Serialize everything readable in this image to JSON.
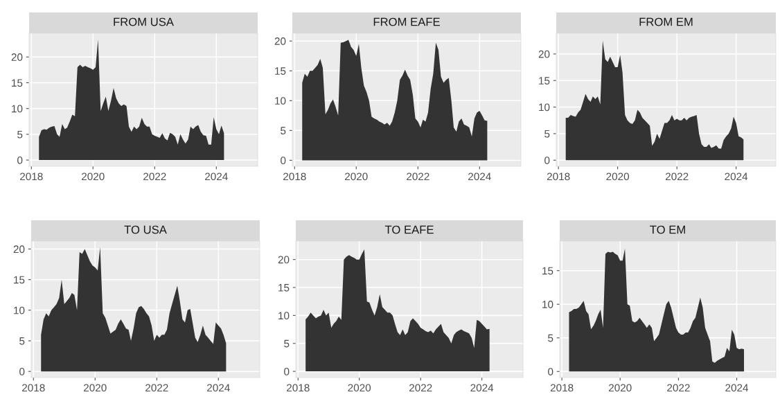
{
  "chart_data": [
    {
      "type": "area",
      "title": "FROM USA",
      "color": "#333333",
      "grid": true,
      "xlim": [
        "2017-12-05",
        "2025-05-05"
      ],
      "xticks": [
        {
          "value": "2018-01",
          "label": "2018"
        },
        {
          "value": "2020-01",
          "label": "2020"
        },
        {
          "value": "2022-01",
          "label": "2022"
        },
        {
          "value": "2024-01",
          "label": "2024"
        }
      ],
      "ylim": [
        -1.2,
        24.6
      ],
      "yticks": [
        0,
        5,
        10,
        15,
        20
      ],
      "x": [
        "2018-04",
        "2018-05",
        "2018-06",
        "2018-07",
        "2018-08",
        "2018-09",
        "2018-10",
        "2018-11",
        "2018-12",
        "2019-01",
        "2019-02",
        "2019-03",
        "2019-04",
        "2019-05",
        "2019-06",
        "2019-07",
        "2019-08",
        "2019-09",
        "2019-10",
        "2019-11",
        "2019-12",
        "2020-01",
        "2020-02",
        "2020-03",
        "2020-04",
        "2020-05",
        "2020-06",
        "2020-07",
        "2020-08",
        "2020-09",
        "2020-10",
        "2020-11",
        "2020-12",
        "2021-01",
        "2021-02",
        "2021-03",
        "2021-04",
        "2021-05",
        "2021-06",
        "2021-07",
        "2021-08",
        "2021-09",
        "2021-10",
        "2021-11",
        "2021-12",
        "2022-01",
        "2022-02",
        "2022-03",
        "2022-04",
        "2022-05",
        "2022-06",
        "2022-07",
        "2022-08",
        "2022-09",
        "2022-10",
        "2022-11",
        "2022-12",
        "2023-01",
        "2023-02",
        "2023-03",
        "2023-04",
        "2023-05",
        "2023-06",
        "2023-07",
        "2023-08",
        "2023-09",
        "2023-10",
        "2023-11",
        "2023-12",
        "2024-01",
        "2024-02",
        "2024-03",
        "2024-04"
      ],
      "values": [
        4.5,
        5.8,
        6.0,
        5.9,
        6.3,
        6.5,
        6.6,
        5.0,
        4.5,
        7.0,
        6.0,
        6.3,
        7.5,
        8.8,
        8.5,
        18.0,
        18.5,
        18.0,
        18.3,
        18.0,
        17.8,
        17.5,
        18.0,
        23.4,
        9.5,
        11.0,
        12.3,
        9.5,
        11.5,
        14.0,
        12.0,
        11.0,
        10.5,
        10.8,
        10.5,
        6.5,
        5.5,
        6.5,
        6.0,
        6.5,
        8.2,
        7.0,
        6.5,
        6.5,
        5.0,
        4.7,
        4.5,
        4.3,
        5.2,
        4.2,
        3.8,
        5.3,
        5.0,
        4.5,
        3.0,
        5.0,
        4.0,
        3.2,
        4.0,
        6.5,
        6.0,
        6.5,
        6.8,
        5.5,
        4.8,
        4.7,
        3.0,
        3.0,
        8.3,
        6.0,
        5.0,
        6.7,
        5.2
      ]
    },
    {
      "type": "area",
      "title": "FROM EAFE",
      "color": "#333333",
      "grid": true,
      "xlim": [
        "2017-12-05",
        "2025-05-05"
      ],
      "xticks": [
        {
          "value": "2018-01",
          "label": "2018"
        },
        {
          "value": "2020-01",
          "label": "2020"
        },
        {
          "value": "2022-01",
          "label": "2022"
        },
        {
          "value": "2024-01",
          "label": "2024"
        }
      ],
      "ylim": [
        -1.0,
        21.3
      ],
      "yticks": [
        0,
        5,
        10,
        15,
        20
      ],
      "x": [
        "2018-04",
        "2018-05",
        "2018-06",
        "2018-07",
        "2018-08",
        "2018-09",
        "2018-10",
        "2018-11",
        "2018-12",
        "2019-01",
        "2019-02",
        "2019-03",
        "2019-04",
        "2019-05",
        "2019-06",
        "2019-07",
        "2019-08",
        "2019-09",
        "2019-10",
        "2019-11",
        "2019-12",
        "2020-01",
        "2020-02",
        "2020-03",
        "2020-04",
        "2020-05",
        "2020-06",
        "2020-07",
        "2020-08",
        "2020-09",
        "2020-10",
        "2020-11",
        "2020-12",
        "2021-01",
        "2021-02",
        "2021-03",
        "2021-04",
        "2021-05",
        "2021-06",
        "2021-07",
        "2021-08",
        "2021-09",
        "2021-10",
        "2021-11",
        "2021-12",
        "2022-01",
        "2022-02",
        "2022-03",
        "2022-04",
        "2022-05",
        "2022-06",
        "2022-07",
        "2022-08",
        "2022-09",
        "2022-10",
        "2022-11",
        "2022-12",
        "2023-01",
        "2023-02",
        "2023-03",
        "2023-04",
        "2023-05",
        "2023-06",
        "2023-07",
        "2023-08",
        "2023-09",
        "2023-10",
        "2023-11",
        "2023-12",
        "2024-01",
        "2024-02",
        "2024-03",
        "2024-04"
      ],
      "values": [
        13.0,
        14.5,
        14.0,
        15.0,
        15.0,
        15.5,
        16.0,
        17.0,
        15.5,
        7.7,
        8.5,
        9.5,
        10.2,
        9.0,
        7.5,
        19.7,
        19.8,
        20.0,
        20.2,
        19.0,
        18.5,
        17.5,
        19.5,
        15.5,
        12.5,
        11.5,
        10.0,
        7.3,
        7.0,
        6.8,
        6.5,
        6.3,
        6.0,
        6.3,
        5.8,
        6.5,
        8.0,
        10.0,
        13.5,
        14.2,
        15.2,
        14.2,
        13.5,
        11.0,
        7.0,
        6.5,
        5.5,
        6.8,
        6.5,
        8.0,
        12.0,
        14.5,
        19.7,
        18.5,
        14.0,
        13.0,
        13.5,
        13.8,
        10.0,
        5.5,
        4.8,
        6.5,
        7.0,
        6.0,
        5.8,
        5.5,
        4.0,
        7.0,
        8.0,
        8.3,
        7.5,
        6.7,
        6.6
      ]
    },
    {
      "type": "area",
      "title": "FROM EM",
      "color": "#333333",
      "grid": true,
      "xlim": [
        "2017-12-05",
        "2025-05-05"
      ],
      "xticks": [
        {
          "value": "2018-01",
          "label": "2018"
        },
        {
          "value": "2020-01",
          "label": "2020"
        },
        {
          "value": "2022-01",
          "label": "2022"
        },
        {
          "value": "2024-01",
          "label": "2024"
        }
      ],
      "ylim": [
        -1.14,
        23.9
      ],
      "yticks": [
        0,
        5,
        10,
        15,
        20
      ],
      "x": [
        "2018-04",
        "2018-05",
        "2018-06",
        "2018-07",
        "2018-08",
        "2018-09",
        "2018-10",
        "2018-11",
        "2018-12",
        "2019-01",
        "2019-02",
        "2019-03",
        "2019-04",
        "2019-05",
        "2019-06",
        "2019-07",
        "2019-08",
        "2019-09",
        "2019-10",
        "2019-11",
        "2019-12",
        "2020-01",
        "2020-02",
        "2020-03",
        "2020-04",
        "2020-05",
        "2020-06",
        "2020-07",
        "2020-08",
        "2020-09",
        "2020-10",
        "2020-11",
        "2020-12",
        "2021-01",
        "2021-02",
        "2021-03",
        "2021-04",
        "2021-05",
        "2021-06",
        "2021-07",
        "2021-08",
        "2021-09",
        "2021-10",
        "2021-11",
        "2021-12",
        "2022-01",
        "2022-02",
        "2022-03",
        "2022-04",
        "2022-05",
        "2022-06",
        "2022-07",
        "2022-08",
        "2022-09",
        "2022-10",
        "2022-11",
        "2022-12",
        "2023-01",
        "2023-02",
        "2023-03",
        "2023-04",
        "2023-05",
        "2023-06",
        "2023-07",
        "2023-08",
        "2023-09",
        "2023-10",
        "2023-11",
        "2023-12",
        "2024-01",
        "2024-02",
        "2024-03",
        "2024-04"
      ],
      "values": [
        8.0,
        8.0,
        8.5,
        8.3,
        8.2,
        9.0,
        9.5,
        11.0,
        12.5,
        11.5,
        11.0,
        12.0,
        11.5,
        12.0,
        10.5,
        22.5,
        19.0,
        18.5,
        19.5,
        18.5,
        17.5,
        17.5,
        19.8,
        16.5,
        8.5,
        7.5,
        7.0,
        6.8,
        7.5,
        9.5,
        9.0,
        8.0,
        7.5,
        7.0,
        6.5,
        2.7,
        3.5,
        5.0,
        4.0,
        5.5,
        7.0,
        7.0,
        7.5,
        8.5,
        7.5,
        7.8,
        7.5,
        7.5,
        8.0,
        7.5,
        8.0,
        8.2,
        8.3,
        8.5,
        5.0,
        3.0,
        2.5,
        2.5,
        3.0,
        2.3,
        2.5,
        2.8,
        2.2,
        2.2,
        3.8,
        4.5,
        5.0,
        6.0,
        8.2,
        7.0,
        4.5,
        4.3,
        3.9
      ]
    },
    {
      "type": "area",
      "title": "TO USA",
      "color": "#333333",
      "grid": true,
      "xlim": [
        "2017-12-05",
        "2025-05-05"
      ],
      "xticks": [
        {
          "value": "2018-01",
          "label": "2018"
        },
        {
          "value": "2020-01",
          "label": "2020"
        },
        {
          "value": "2022-01",
          "label": "2022"
        },
        {
          "value": "2024-01",
          "label": "2024"
        }
      ],
      "ylim": [
        -1.0,
        21.3
      ],
      "yticks": [
        0,
        5,
        10,
        15,
        20
      ],
      "x": [
        "2018-04",
        "2018-05",
        "2018-06",
        "2018-07",
        "2018-08",
        "2018-09",
        "2018-10",
        "2018-11",
        "2018-12",
        "2019-01",
        "2019-02",
        "2019-03",
        "2019-04",
        "2019-05",
        "2019-06",
        "2019-07",
        "2019-08",
        "2019-09",
        "2019-10",
        "2019-11",
        "2019-12",
        "2020-01",
        "2020-02",
        "2020-03",
        "2020-04",
        "2020-05",
        "2020-06",
        "2020-07",
        "2020-08",
        "2020-09",
        "2020-10",
        "2020-11",
        "2020-12",
        "2021-01",
        "2021-02",
        "2021-03",
        "2021-04",
        "2021-05",
        "2021-06",
        "2021-07",
        "2021-08",
        "2021-09",
        "2021-10",
        "2021-11",
        "2021-12",
        "2022-01",
        "2022-02",
        "2022-03",
        "2022-04",
        "2022-05",
        "2022-06",
        "2022-07",
        "2022-08",
        "2022-09",
        "2022-10",
        "2022-11",
        "2022-12",
        "2023-01",
        "2023-02",
        "2023-03",
        "2023-04",
        "2023-05",
        "2023-06",
        "2023-07",
        "2023-08",
        "2023-09",
        "2023-10",
        "2023-11",
        "2023-12",
        "2024-01",
        "2024-02",
        "2024-03",
        "2024-04"
      ],
      "values": [
        6.0,
        8.5,
        9.5,
        9.0,
        10.0,
        10.5,
        11.0,
        12.0,
        15.0,
        11.0,
        11.5,
        12.0,
        12.8,
        12.5,
        10.0,
        19.5,
        19.2,
        20.0,
        19.0,
        18.0,
        17.3,
        17.0,
        16.5,
        20.3,
        9.5,
        8.8,
        7.5,
        6.2,
        6.5,
        6.8,
        7.8,
        8.5,
        7.8,
        7.0,
        6.8,
        5.0,
        7.0,
        9.5,
        10.5,
        10.7,
        10.2,
        9.5,
        9.0,
        7.5,
        5.0,
        6.0,
        5.5,
        6.0,
        6.0,
        6.8,
        9.5,
        11.0,
        12.5,
        14.0,
        11.5,
        8.5,
        8.0,
        10.0,
        10.2,
        8.0,
        5.5,
        4.8,
        6.0,
        7.5,
        6.0,
        5.5,
        5.0,
        4.5,
        8.0,
        7.5,
        7.0,
        6.0,
        4.6
      ]
    },
    {
      "type": "area",
      "title": "TO EAFE",
      "color": "#333333",
      "grid": true,
      "xlim": [
        "2017-12-05",
        "2025-05-05"
      ],
      "xticks": [
        {
          "value": "2018-01",
          "label": "2018"
        },
        {
          "value": "2020-01",
          "label": "2020"
        },
        {
          "value": "2022-01",
          "label": "2022"
        },
        {
          "value": "2024-01",
          "label": "2024"
        }
      ],
      "ylim": [
        -1.1,
        23.3
      ],
      "yticks": [
        0,
        5,
        10,
        15,
        20
      ],
      "x": [
        "2018-04",
        "2018-05",
        "2018-06",
        "2018-07",
        "2018-08",
        "2018-09",
        "2018-10",
        "2018-11",
        "2018-12",
        "2019-01",
        "2019-02",
        "2019-03",
        "2019-04",
        "2019-05",
        "2019-06",
        "2019-07",
        "2019-08",
        "2019-09",
        "2019-10",
        "2019-11",
        "2019-12",
        "2020-01",
        "2020-02",
        "2020-03",
        "2020-04",
        "2020-05",
        "2020-06",
        "2020-07",
        "2020-08",
        "2020-09",
        "2020-10",
        "2020-11",
        "2020-12",
        "2021-01",
        "2021-02",
        "2021-03",
        "2021-04",
        "2021-05",
        "2021-06",
        "2021-07",
        "2021-08",
        "2021-09",
        "2021-10",
        "2021-11",
        "2021-12",
        "2022-01",
        "2022-02",
        "2022-03",
        "2022-04",
        "2022-05",
        "2022-06",
        "2022-07",
        "2022-08",
        "2022-09",
        "2022-10",
        "2022-11",
        "2022-12",
        "2023-01",
        "2023-02",
        "2023-03",
        "2023-04",
        "2023-05",
        "2023-06",
        "2023-07",
        "2023-08",
        "2023-09",
        "2023-10",
        "2023-11",
        "2023-12",
        "2024-01",
        "2024-02",
        "2024-03",
        "2024-04"
      ],
      "values": [
        9.3,
        9.8,
        10.5,
        10.0,
        9.5,
        9.8,
        10.0,
        11.0,
        10.0,
        10.5,
        7.8,
        8.5,
        9.0,
        9.8,
        9.2,
        20.0,
        20.5,
        20.8,
        20.5,
        20.3,
        20.0,
        20.0,
        21.0,
        21.8,
        12.5,
        12.3,
        11.0,
        10.0,
        11.5,
        13.8,
        11.5,
        11.0,
        10.5,
        10.5,
        10.0,
        8.5,
        7.0,
        6.5,
        7.5,
        6.5,
        7.0,
        9.0,
        9.5,
        9.0,
        8.5,
        7.8,
        7.5,
        7.2,
        7.0,
        7.3,
        6.8,
        7.5,
        8.0,
        8.5,
        7.0,
        6.5,
        6.0,
        5.0,
        6.5,
        7.0,
        7.3,
        7.5,
        7.2,
        7.0,
        6.8,
        6.0,
        4.2,
        9.2,
        9.0,
        8.5,
        8.0,
        7.5,
        7.6
      ]
    },
    {
      "type": "area",
      "title": "TO EM",
      "color": "#333333",
      "grid": true,
      "xlim": [
        "2017-12-05",
        "2025-05-05"
      ],
      "xticks": [
        {
          "value": "2018-01",
          "label": "2018"
        },
        {
          "value": "2020-01",
          "label": "2020"
        },
        {
          "value": "2022-01",
          "label": "2022"
        },
        {
          "value": "2024-01",
          "label": "2024"
        }
      ],
      "ylim": [
        -0.9,
        19.4
      ],
      "yticks": [
        0,
        5,
        10,
        15
      ],
      "x": [
        "2018-04",
        "2018-05",
        "2018-06",
        "2018-07",
        "2018-08",
        "2018-09",
        "2018-10",
        "2018-11",
        "2018-12",
        "2019-01",
        "2019-02",
        "2019-03",
        "2019-04",
        "2019-05",
        "2019-06",
        "2019-07",
        "2019-08",
        "2019-09",
        "2019-10",
        "2019-11",
        "2019-12",
        "2020-01",
        "2020-02",
        "2020-03",
        "2020-04",
        "2020-05",
        "2020-06",
        "2020-07",
        "2020-08",
        "2020-09",
        "2020-10",
        "2020-11",
        "2020-12",
        "2021-01",
        "2021-02",
        "2021-03",
        "2021-04",
        "2021-05",
        "2021-06",
        "2021-07",
        "2021-08",
        "2021-09",
        "2021-10",
        "2021-11",
        "2021-12",
        "2022-01",
        "2022-02",
        "2022-03",
        "2022-04",
        "2022-05",
        "2022-06",
        "2022-07",
        "2022-08",
        "2022-09",
        "2022-10",
        "2022-11",
        "2022-12",
        "2023-01",
        "2023-02",
        "2023-03",
        "2023-04",
        "2023-05",
        "2023-06",
        "2023-07",
        "2023-08",
        "2023-09",
        "2023-10",
        "2023-11",
        "2023-12",
        "2024-01",
        "2024-02",
        "2024-03",
        "2024-04"
      ],
      "values": [
        8.8,
        9.0,
        9.3,
        9.3,
        9.5,
        10.0,
        10.5,
        9.0,
        8.5,
        6.3,
        6.8,
        7.5,
        8.5,
        9.2,
        6.5,
        17.5,
        17.8,
        17.7,
        17.8,
        17.5,
        17.3,
        16.5,
        16.5,
        18.3,
        10.0,
        9.8,
        7.5,
        7.3,
        7.5,
        8.0,
        7.5,
        7.0,
        6.5,
        7.0,
        6.5,
        4.5,
        5.0,
        5.5,
        7.0,
        8.5,
        10.0,
        10.5,
        9.5,
        8.0,
        6.5,
        5.8,
        5.5,
        5.5,
        5.8,
        5.8,
        6.5,
        7.5,
        8.0,
        9.5,
        11.0,
        9.5,
        6.5,
        5.5,
        4.5,
        1.5,
        1.3,
        1.6,
        1.8,
        2.0,
        2.2,
        3.5,
        3.0,
        6.2,
        5.5,
        3.5,
        3.3,
        3.4,
        3.3
      ]
    }
  ]
}
